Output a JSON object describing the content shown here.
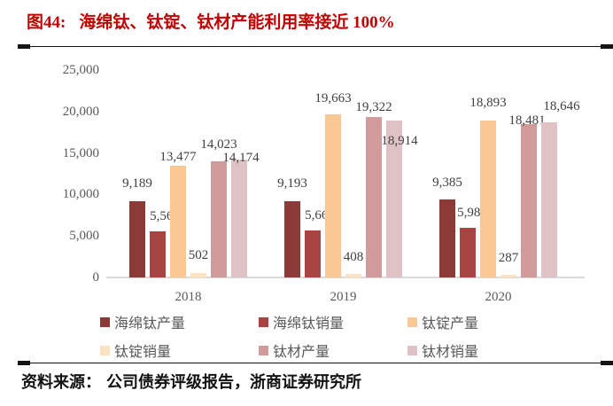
{
  "header": {
    "figure_label": "图44:",
    "title": "海绵钛、钛锭、钛材产能利用率接近 100%"
  },
  "source": {
    "label": "资料来源：",
    "text": "公司债券评级报告，浙商证券研究所"
  },
  "colors": {
    "title_red": "#C00000",
    "axis_text": "#595959",
    "data_label_text": "#3F3F3F",
    "baseline_gray": "#D9D9D9"
  },
  "chart_data": {
    "type": "bar",
    "title": "海绵钛、钛锭、钛材产能利用率接近 100%",
    "categories": [
      "2018",
      "2019",
      "2020"
    ],
    "series": [
      {
        "name": "海绵钛产量",
        "color": "#8C3A37",
        "values": [
          9189,
          9193,
          9385
        ],
        "label_offsets": [
          [
            0,
            -8
          ],
          [
            0,
            -8
          ],
          [
            0,
            -7
          ]
        ]
      },
      {
        "name": "海绵钛销量",
        "color": "#A64541",
        "values": [
          5564,
          5665,
          5984
        ],
        "label_offsets": [
          [
            8,
            -5
          ],
          [
            8,
            -5
          ],
          [
            5,
            -5
          ]
        ]
      },
      {
        "name": "钛锭产量",
        "color": "#FAC795",
        "values": [
          13477,
          19663,
          18893
        ],
        "label_offsets": [
          [
            0,
            2
          ],
          [
            0,
            -6
          ],
          [
            0,
            -8
          ]
        ]
      },
      {
        "name": "钛锭销量",
        "color": "#FCE2C1",
        "values": [
          502,
          408,
          287
        ],
        "label_offsets": [
          [
            0,
            -8
          ],
          [
            0,
            -7
          ],
          [
            0,
            -7
          ]
        ]
      },
      {
        "name": "钛材产量",
        "color": "#D19A9B",
        "values": [
          14023,
          19322,
          18481
        ],
        "label_offsets": [
          [
            0,
            -7
          ],
          [
            0,
            1
          ],
          [
            -2,
            8
          ]
        ]
      },
      {
        "name": "钛材销量",
        "color": "#DFC2C5",
        "values": [
          14174,
          18914,
          18646
        ],
        "label_offsets": [
          [
            2,
            10
          ],
          [
            6,
            35
          ],
          [
            14,
            -6
          ]
        ]
      }
    ],
    "xlabel": "",
    "ylabel": "",
    "ylim": [
      0,
      25000
    ],
    "y_ticks": [
      0,
      5000,
      10000,
      15000,
      20000,
      25000
    ],
    "grid": false,
    "legend_position": "bottom",
    "value_labels": "outside-end",
    "number_format": "thousands-comma"
  }
}
